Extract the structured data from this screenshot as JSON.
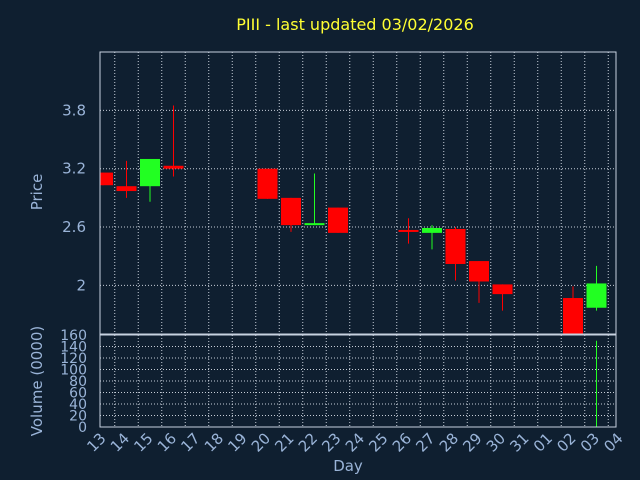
{
  "chart_data": {
    "type": "candlestick",
    "title": "PIII - last updated 03/02/2026",
    "xlabel": "Day",
    "price_panel": {
      "ylabel": "Price",
      "ylim": [
        1.5,
        4.4
      ],
      "yticks": [
        2,
        2.6,
        3.2,
        3.8
      ],
      "ytick_labels": [
        "2",
        "2.6",
        "3.2",
        "3.8"
      ]
    },
    "volume_panel": {
      "ylabel": "Volume (0000)",
      "ylim": [
        0,
        160
      ],
      "yticks": [
        0,
        20,
        40,
        60,
        80,
        100,
        120,
        140,
        160
      ],
      "ytick_labels": [
        "0",
        "20",
        "40",
        "60",
        "80",
        "100",
        "120",
        "140",
        "160"
      ]
    },
    "x_labels": [
      "13",
      "14",
      "15",
      "16",
      "17",
      "18",
      "19",
      "20",
      "21",
      "22",
      "23",
      "24",
      "25",
      "26",
      "27",
      "28",
      "29",
      "30",
      "31",
      "01",
      "02",
      "03",
      "04"
    ],
    "grid": true,
    "candles": [
      {
        "day": "13",
        "open": 3.16,
        "high": 3.16,
        "low": 3.03,
        "close": 3.03,
        "volume": 0
      },
      {
        "day": "14",
        "open": 3.02,
        "high": 3.28,
        "low": 2.9,
        "close": 2.97,
        "volume": 0
      },
      {
        "day": "15",
        "open": 3.02,
        "high": 3.3,
        "low": 2.86,
        "close": 3.3,
        "volume": 0
      },
      {
        "day": "16",
        "open": 3.23,
        "high": 3.85,
        "low": 3.12,
        "close": 3.2,
        "volume": 0
      },
      {
        "day": "20",
        "open": 3.2,
        "high": 3.2,
        "low": 2.89,
        "close": 2.89,
        "volume": 0
      },
      {
        "day": "21",
        "open": 2.9,
        "high": 2.9,
        "low": 2.55,
        "close": 2.62,
        "volume": 0
      },
      {
        "day": "22",
        "open": 2.62,
        "high": 3.15,
        "low": 2.62,
        "close": 2.64,
        "volume": 0
      },
      {
        "day": "23",
        "open": 2.8,
        "high": 2.8,
        "low": 2.54,
        "close": 2.54,
        "volume": 0
      },
      {
        "day": "26",
        "open": 2.57,
        "high": 2.69,
        "low": 2.43,
        "close": 2.56,
        "volume": 0
      },
      {
        "day": "27",
        "open": 2.54,
        "high": 2.62,
        "low": 2.37,
        "close": 2.59,
        "volume": 0
      },
      {
        "day": "28",
        "open": 2.58,
        "high": 2.6,
        "low": 2.05,
        "close": 2.22,
        "volume": 0
      },
      {
        "day": "29",
        "open": 2.25,
        "high": 2.25,
        "low": 1.82,
        "close": 2.04,
        "volume": 0
      },
      {
        "day": "30",
        "open": 2.01,
        "high": 2.01,
        "low": 1.74,
        "close": 1.91,
        "volume": 0
      },
      {
        "day": "02",
        "open": 1.87,
        "high": 1.99,
        "low": 1.5,
        "close": 1.5,
        "volume": 0
      },
      {
        "day": "03",
        "open": 1.77,
        "high": 2.2,
        "low": 1.74,
        "close": 2.02,
        "volume": 150
      }
    ],
    "colors": {
      "up": "#22ff22",
      "down": "#ff0000",
      "volume": "#22ff22",
      "title": "#ffff33",
      "text": "#9ab4d8",
      "background": "#0f1f30"
    }
  }
}
